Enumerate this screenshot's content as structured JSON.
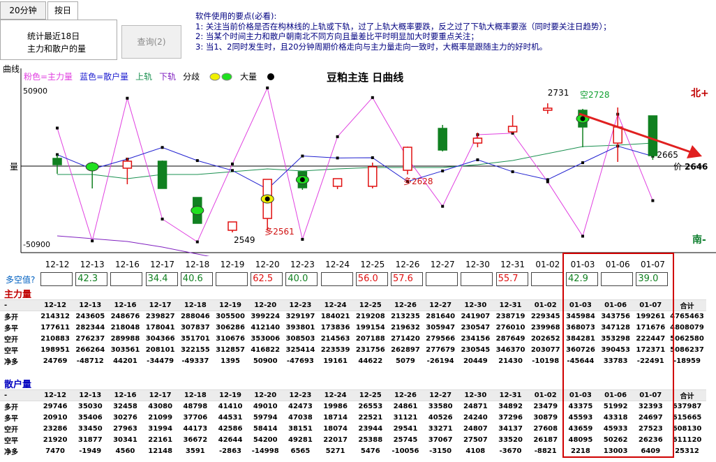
{
  "tabs": [
    {
      "label": "20分钟"
    },
    {
      "label": "按日"
    }
  ],
  "panel": {
    "line1": "统计最近18日",
    "line2": "主力和散户的量"
  },
  "query_button": "查询(2)",
  "tips": {
    "heading": "软件使用的要点(必看):",
    "items": [
      "1: 关注当前价格是否在构林线的上轨或下轨，过了上轨大概率要跌，反之过了下轨大概率要涨（同时要关注日趋势）；",
      "2: 当某个时间主力和散户朝南北不同方向且量差比平时明显加大时要重点关注；",
      "3: 当1、2同时发生时，且20分钟周期价格走向与主力量走向一致时，大概率是跟随主力的好时机。"
    ]
  },
  "chart_section_label": "曲线",
  "legend": {
    "main": "粉色=主力量",
    "retail": "蓝色=散户量",
    "upper": "上轨",
    "lower": "下轨",
    "diverge": "分歧",
    "big": "大量"
  },
  "chart_title": "豆粕主连 日曲线",
  "ylabel": "量",
  "north": "北+",
  "south": "南-",
  "price_label": "价",
  "price_value": "2646",
  "chart_data": {
    "type": "line",
    "title": "豆粕主连 日曲线",
    "ylabel": "量",
    "ylim": [
      -50900,
      50900
    ],
    "yticks": [
      "50900",
      "-50900"
    ],
    "x": [
      "12-12",
      "12-13",
      "12-16",
      "12-17",
      "12-18",
      "12-19",
      "12-20",
      "12-23",
      "12-24",
      "12-25",
      "12-26",
      "12-27",
      "12-30",
      "12-31",
      "01-02",
      "01-03",
      "01-06",
      "01-07"
    ],
    "series": [
      {
        "name": "主力量",
        "color": "#e040e0",
        "values": [
          24769,
          -48712,
          44201,
          -34479,
          -49337,
          1395,
          50900,
          -47693,
          19161,
          44622,
          5079,
          -26194,
          20449,
          21430,
          -10198,
          -45644,
          33783,
          -22491
        ]
      },
      {
        "name": "散户量",
        "color": "#2020d0",
        "values": [
          7470,
          -1949,
          4560,
          12148,
          3591,
          -2863,
          -14998,
          6565,
          5271,
          5476,
          -10056,
          -3150,
          4108,
          -3670,
          -8821,
          2218,
          13003,
          6409
        ]
      },
      {
        "name": "上轨",
        "color": "#1a9050",
        "values": [
          -12,
          -12,
          -18,
          -12,
          -12,
          -8,
          -4,
          -7,
          -4,
          -2,
          -2,
          -2,
          2,
          8,
          18,
          28,
          30,
          33
        ]
      },
      {
        "name": "下轨",
        "color": "#8020c0",
        "values": [
          -100,
          -104,
          -108,
          -116,
          -126,
          -136,
          -138,
          -138,
          -140,
          -139,
          -138,
          -137,
          -137,
          -137,
          -137,
          -136,
          -136,
          -135
        ]
      }
    ],
    "candles": [
      {
        "o": 11,
        "c": 2,
        "h": 16,
        "l": -11,
        "up": false
      },
      {
        "o": 1,
        "c": -3,
        "h": 6,
        "l": -32,
        "up": false
      },
      {
        "o": -3,
        "c": 7,
        "h": 12,
        "l": -26,
        "up": true
      },
      {
        "o": 7,
        "c": -32,
        "h": 8,
        "l": -32,
        "up": false
      },
      {
        "o": -45,
        "c": -82,
        "h": -45,
        "l": -82,
        "up": false
      },
      {
        "o": -92,
        "c": -80,
        "h": -80,
        "l": -95,
        "up": true
      },
      {
        "o": -75,
        "c": -19,
        "h": -19,
        "l": -92,
        "up": true
      },
      {
        "o": -31,
        "c": -8,
        "h": -8,
        "l": -34,
        "up": false
      },
      {
        "o": -29,
        "c": -18,
        "h": -18,
        "l": -33,
        "up": true
      },
      {
        "o": -29,
        "c": -1,
        "h": 5,
        "l": -32,
        "up": true
      },
      {
        "o": -6,
        "c": 27,
        "h": 28,
        "l": -12,
        "up": true
      },
      {
        "o": 23,
        "c": 54,
        "h": 59,
        "l": 21,
        "up": false
      },
      {
        "o": 33,
        "c": 40,
        "h": 48,
        "l": 27,
        "up": true
      },
      {
        "o": 49,
        "c": 57,
        "h": 73,
        "l": 47,
        "up": true
      },
      {
        "o": 83,
        "c": 80,
        "h": 90,
        "l": 75,
        "up": true
      },
      {
        "o": 56,
        "c": 80,
        "h": 82,
        "l": 27,
        "up": false
      },
      {
        "o": 33,
        "c": 56,
        "h": 84,
        "l": 6,
        "up": true
      },
      {
        "o": 15,
        "c": 72,
        "h": 72,
        "l": 9,
        "up": false
      }
    ],
    "annotations": [
      {
        "text": "2549",
        "i": 5,
        "dx": 2,
        "dy": -110,
        "color": "#000"
      },
      {
        "text": "多2561",
        "i": 6,
        "dx": -4,
        "dy": -98,
        "color": "#d01010"
      },
      {
        "text": "多2628",
        "i": 10,
        "dx": -6,
        "dy": -26,
        "color": "#d01010"
      },
      {
        "text": "2731",
        "i": 14,
        "dx": 0,
        "dy": 101,
        "color": "#000"
      },
      {
        "text": "空2728",
        "i": 15,
        "dx": -4,
        "dy": 98,
        "color": "#10a030"
      },
      {
        "text": "2665",
        "i": 17,
        "dx": 6,
        "dy": 12,
        "color": "#000"
      }
    ]
  },
  "duokong_label": "多空值?",
  "duokong_values": [
    "",
    "42.3",
    "",
    "34.4",
    "40.6",
    "",
    "62.5",
    "40.0",
    "",
    "56.0",
    "57.6",
    "",
    "",
    "55.7",
    "",
    "42.9",
    "",
    "39.0"
  ],
  "duokong_colors": [
    "",
    "g",
    "",
    "g",
    "g",
    "",
    "r",
    "g",
    "",
    "r",
    "r",
    "",
    "",
    "r",
    "",
    "g",
    "",
    "g"
  ],
  "main_force": {
    "title": "主力量",
    "header_first": "-",
    "total_label": "合计",
    "rows": [
      {
        "label": "多开",
        "values": [
          "214312",
          "243605",
          "248676",
          "239827",
          "288046",
          "305500",
          "399224",
          "329197",
          "184021",
          "219208",
          "213235",
          "281640",
          "241907",
          "238719",
          "229345",
          "345984",
          "343756",
          "199261"
        ],
        "total": "4765463"
      },
      {
        "label": "多平",
        "values": [
          "177611",
          "282344",
          "218048",
          "178041",
          "307837",
          "306286",
          "412140",
          "393801",
          "173836",
          "199154",
          "219632",
          "305947",
          "230547",
          "276010",
          "239968",
          "368073",
          "347128",
          "171676"
        ],
        "total": "4808079"
      },
      {
        "label": "空开",
        "values": [
          "210883",
          "276237",
          "289988",
          "304366",
          "351701",
          "310676",
          "353006",
          "308503",
          "214563",
          "207188",
          "271420",
          "279566",
          "234156",
          "287649",
          "202652",
          "384281",
          "353298",
          "222447"
        ],
        "total": "5062580"
      },
      {
        "label": "空平",
        "values": [
          "198951",
          "266264",
          "303561",
          "208101",
          "322155",
          "312857",
          "416822",
          "325414",
          "223539",
          "231756",
          "262897",
          "277679",
          "230545",
          "346370",
          "203077",
          "360726",
          "390453",
          "172371"
        ],
        "total": "5086237"
      },
      {
        "label": "净多",
        "values": [
          "24769",
          "-48712",
          "44201",
          "-34479",
          "-49337",
          "1395",
          "50900",
          "-47693",
          "19161",
          "44622",
          "5079",
          "-26194",
          "20449",
          "21430",
          "-10198",
          "-45644",
          "33783",
          "-22491"
        ],
        "total": "-18959"
      }
    ]
  },
  "retail": {
    "title": "散户量",
    "header_first": "-",
    "total_label": "合计",
    "rows": [
      {
        "label": "多开",
        "values": [
          "29746",
          "35030",
          "32458",
          "43080",
          "48798",
          "41410",
          "49010",
          "42473",
          "19986",
          "26553",
          "24861",
          "33580",
          "24871",
          "34892",
          "23479",
          "43375",
          "51992",
          "32393"
        ],
        "total": "637987"
      },
      {
        "label": "多平",
        "values": [
          "20910",
          "35406",
          "30276",
          "21099",
          "37706",
          "44531",
          "59794",
          "47038",
          "18714",
          "22521",
          "31121",
          "40526",
          "24240",
          "37296",
          "30879",
          "45593",
          "43318",
          "24697"
        ],
        "total": "615665"
      },
      {
        "label": "空开",
        "values": [
          "23286",
          "33450",
          "27963",
          "31994",
          "44173",
          "42586",
          "58414",
          "38151",
          "18074",
          "23944",
          "29541",
          "33271",
          "24807",
          "34137",
          "27608",
          "43659",
          "45933",
          "27523"
        ],
        "total": "608130"
      },
      {
        "label": "空平",
        "values": [
          "21920",
          "31877",
          "30341",
          "22161",
          "36672",
          "42644",
          "54200",
          "49281",
          "22017",
          "25388",
          "25745",
          "37067",
          "27507",
          "33520",
          "26187",
          "48095",
          "50262",
          "26236"
        ],
        "total": "611120"
      },
      {
        "label": "净多",
        "values": [
          "7470",
          "-1949",
          "4560",
          "12148",
          "3591",
          "-2863",
          "-14998",
          "6565",
          "5271",
          "5476",
          "-10056",
          "-3150",
          "4108",
          "-3670",
          "-8821",
          "2218",
          "13003",
          "6409"
        ],
        "total": "25312"
      }
    ]
  }
}
